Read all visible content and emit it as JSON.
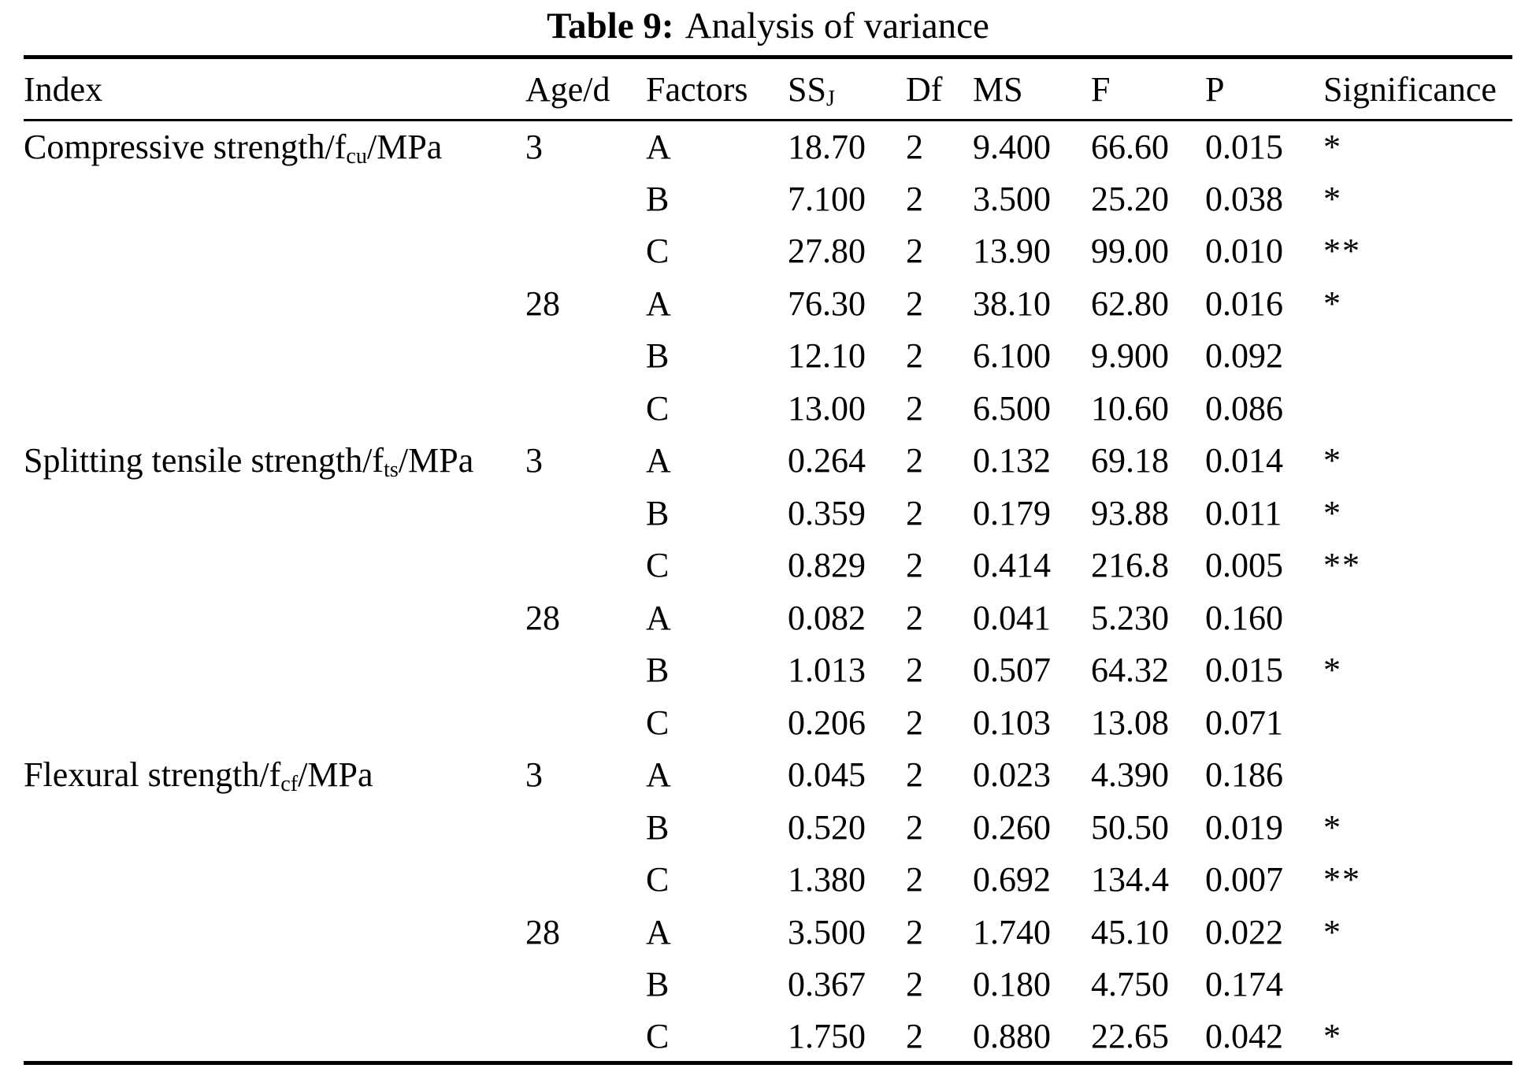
{
  "title": {
    "label": "Table 9:",
    "text": "Analysis of variance"
  },
  "header": {
    "index": "Index",
    "age": "Age/d",
    "factors": "Factors",
    "ss_base": "SS",
    "ss_sub": "J",
    "df": "Df",
    "ms": "MS",
    "f": "F",
    "p": "P",
    "significance": "Significance"
  },
  "rows": [
    {
      "index_pre": "Compressive strength/f",
      "index_sub": "cu",
      "index_post": "/MPa",
      "age": "3",
      "factor": "A",
      "ss": "18.70",
      "df": "2",
      "ms": "9.400",
      "f": "66.60",
      "p": "0.015",
      "sig": "*"
    },
    {
      "factor": "B",
      "ss": "7.100",
      "df": "2",
      "ms": "3.500",
      "f": "25.20",
      "p": "0.038",
      "sig": "*"
    },
    {
      "factor": "C",
      "ss": "27.80",
      "df": "2",
      "ms": "13.90",
      "f": "99.00",
      "p": "0.010",
      "sig": "**"
    },
    {
      "age": "28",
      "factor": "A",
      "ss": "76.30",
      "df": "2",
      "ms": "38.10",
      "f": "62.80",
      "p": "0.016",
      "sig": "*"
    },
    {
      "factor": "B",
      "ss": "12.10",
      "df": "2",
      "ms": "6.100",
      "f": "9.900",
      "p": "0.092",
      "sig": ""
    },
    {
      "factor": "C",
      "ss": "13.00",
      "df": "2",
      "ms": "6.500",
      "f": "10.60",
      "p": "0.086",
      "sig": ""
    },
    {
      "index_pre": "Splitting tensile strength/f",
      "index_sub": "ts",
      "index_post": "/MPa",
      "age": "3",
      "factor": "A",
      "ss": "0.264",
      "df": "2",
      "ms": "0.132",
      "f": "69.18",
      "p": "0.014",
      "sig": "*"
    },
    {
      "factor": "B",
      "ss": "0.359",
      "df": "2",
      "ms": "0.179",
      "f": "93.88",
      "p": "0.011",
      "sig": "*"
    },
    {
      "factor": "C",
      "ss": "0.829",
      "df": "2",
      "ms": "0.414",
      "f": "216.8",
      "p": "0.005",
      "sig": "**"
    },
    {
      "age": "28",
      "factor": "A",
      "ss": "0.082",
      "df": "2",
      "ms": "0.041",
      "f": "5.230",
      "p": "0.160",
      "sig": ""
    },
    {
      "factor": "B",
      "ss": "1.013",
      "df": "2",
      "ms": "0.507",
      "f": "64.32",
      "p": "0.015",
      "sig": "*"
    },
    {
      "factor": "C",
      "ss": "0.206",
      "df": "2",
      "ms": "0.103",
      "f": "13.08",
      "p": "0.071",
      "sig": ""
    },
    {
      "index_pre": "Flexural strength/f",
      "index_sub": "cf",
      "index_post": "/MPa",
      "age": "3",
      "factor": "A",
      "ss": "0.045",
      "df": "2",
      "ms": "0.023",
      "f": "4.390",
      "p": "0.186",
      "sig": ""
    },
    {
      "factor": "B",
      "ss": "0.520",
      "df": "2",
      "ms": "0.260",
      "f": "50.50",
      "p": "0.019",
      "sig": "*"
    },
    {
      "factor": "C",
      "ss": "1.380",
      "df": "2",
      "ms": "0.692",
      "f": "134.4",
      "p": "0.007",
      "sig": "**"
    },
    {
      "age": "28",
      "factor": "A",
      "ss": "3.500",
      "df": "2",
      "ms": "1.740",
      "f": "45.10",
      "p": "0.022",
      "sig": "*"
    },
    {
      "factor": "B",
      "ss": "0.367",
      "df": "2",
      "ms": "0.180",
      "f": "4.750",
      "p": "0.174",
      "sig": ""
    },
    {
      "factor": "C",
      "ss": "1.750",
      "df": "2",
      "ms": "0.880",
      "f": "22.65",
      "p": "0.042",
      "sig": "*"
    }
  ]
}
